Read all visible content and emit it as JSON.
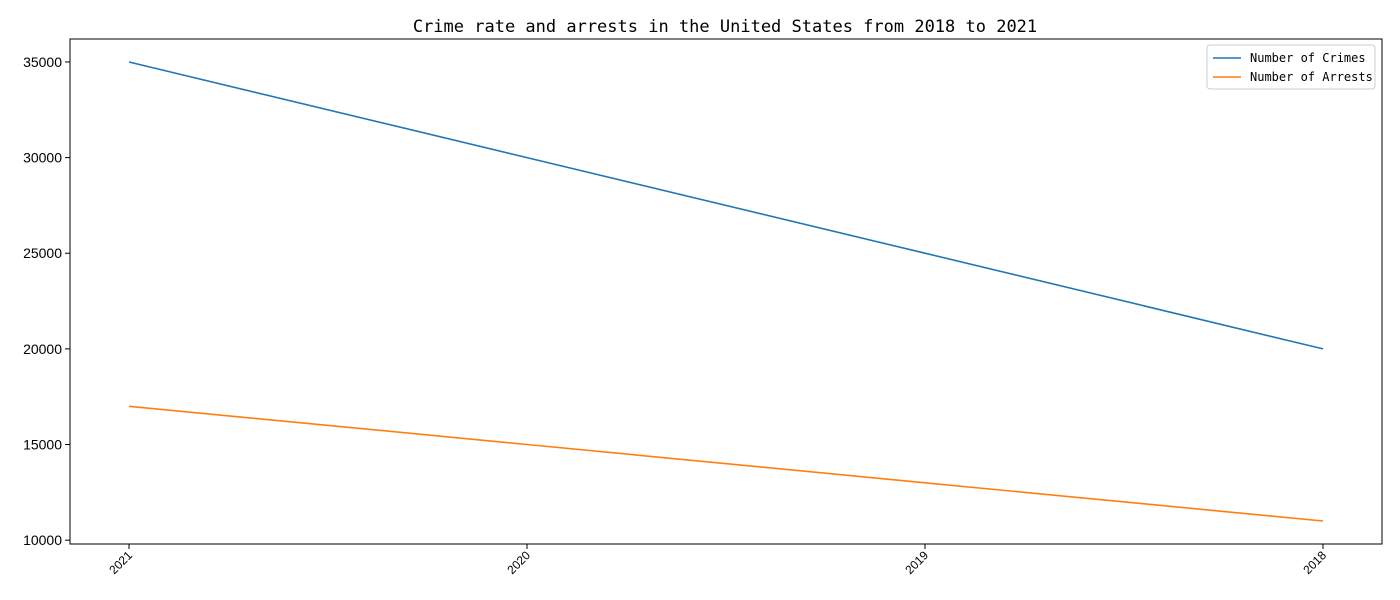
{
  "chart_data": {
    "type": "line",
    "title": "Crime rate and arrests in the United States from 2018 to 2021",
    "xlabel": "",
    "ylabel": "",
    "categories": [
      "2021",
      "2020",
      "2019",
      "2018"
    ],
    "series": [
      {
        "name": "Number of Crimes",
        "values": [
          35000,
          30000,
          25000,
          20000
        ],
        "color": "#1f77b4"
      },
      {
        "name": "Number of Arrests",
        "values": [
          17000,
          15000,
          13000,
          11000
        ],
        "color": "#ff7f0e"
      }
    ],
    "ylim": [
      9800,
      36200
    ],
    "yticks": [
      10000,
      15000,
      20000,
      25000,
      30000,
      35000
    ],
    "grid": false,
    "legend": "top-right"
  }
}
